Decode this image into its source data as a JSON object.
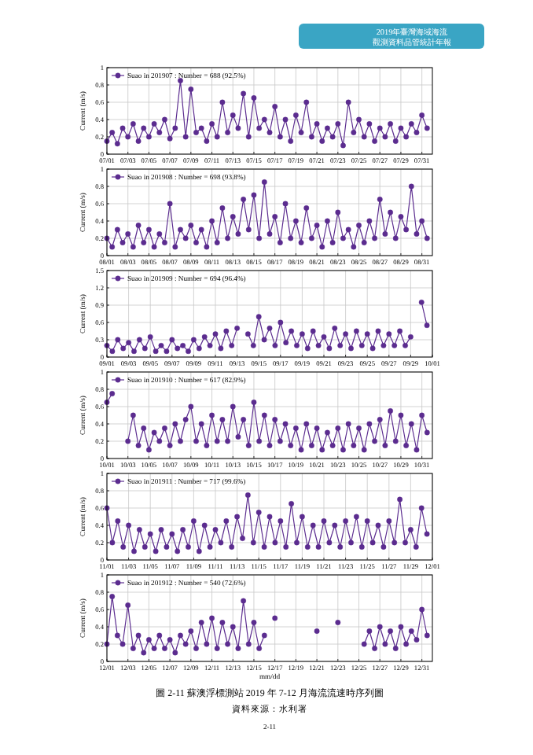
{
  "chart_data": [
    {
      "type": "line",
      "ylabel": "Current (m/s)",
      "annotations": [
        "2019年臺灣海域海流",
        "觀測資料品管統計年報"
      ],
      "grid": true,
      "legend": "top left",
      "marker": "circle",
      "xlim": [
        "2019-07-01",
        "2019-08-01"
      ],
      "ylim": [
        0,
        1
      ],
      "yticks": [
        0,
        0.2,
        0.4,
        0.6,
        0.8,
        1
      ],
      "xticks": [
        {
          "value": "2019-07-01",
          "label": "07/01"
        },
        {
          "value": "2019-07-03",
          "label": "07/03"
        },
        {
          "value": "2019-07-05",
          "label": "07/05"
        },
        {
          "value": "2019-07-07",
          "label": "07/07"
        },
        {
          "value": "2019-07-09",
          "label": "07/09"
        },
        {
          "value": "2019-07-11",
          "label": "07/11"
        },
        {
          "value": "2019-07-13",
          "label": "07/13"
        },
        {
          "value": "2019-07-15",
          "label": "07/15"
        },
        {
          "value": "2019-07-17",
          "label": "07/17"
        },
        {
          "value": "2019-07-19",
          "label": "07/19"
        },
        {
          "value": "2019-07-21",
          "label": "07/21"
        },
        {
          "value": "2019-07-23",
          "label": "07/23"
        },
        {
          "value": "2019-07-25",
          "label": "07/25"
        },
        {
          "value": "2019-07-27",
          "label": "07/27"
        },
        {
          "value": "2019-07-29",
          "label": "07/29"
        },
        {
          "value": "2019-07-31",
          "label": "07/31"
        }
      ],
      "x": [
        "2019-07-01T00:00",
        "2019-07-01T12:00",
        "2019-07-02T00:00",
        "2019-07-02T12:00",
        "2019-07-03T00:00",
        "2019-07-03T12:00",
        "2019-07-04T00:00",
        "2019-07-04T12:00",
        "2019-07-05T00:00",
        "2019-07-05T12:00",
        "2019-07-06T00:00",
        "2019-07-06T12:00",
        "2019-07-07T00:00",
        "2019-07-07T12:00",
        "2019-07-08T00:00",
        "2019-07-08T12:00",
        "2019-07-09T00:00",
        "2019-07-09T12:00",
        "2019-07-10T00:00",
        "2019-07-10T12:00",
        "2019-07-11T00:00",
        "2019-07-11T12:00",
        "2019-07-12T00:00",
        "2019-07-12T12:00",
        "2019-07-13T00:00",
        "2019-07-13T12:00",
        "2019-07-14T00:00",
        "2019-07-14T12:00",
        "2019-07-15T00:00",
        "2019-07-15T12:00",
        "2019-07-16T00:00",
        "2019-07-16T12:00",
        "2019-07-17T00:00",
        "2019-07-17T12:00",
        "2019-07-18T00:00",
        "2019-07-18T12:00",
        "2019-07-19T00:00",
        "2019-07-19T12:00",
        "2019-07-20T00:00",
        "2019-07-20T12:00",
        "2019-07-21T00:00",
        "2019-07-21T12:00",
        "2019-07-22T00:00",
        "2019-07-22T12:00",
        "2019-07-23T00:00",
        "2019-07-23T12:00",
        "2019-07-24T00:00",
        "2019-07-24T12:00",
        "2019-07-25T00:00",
        "2019-07-25T12:00",
        "2019-07-26T00:00",
        "2019-07-26T12:00",
        "2019-07-27T00:00",
        "2019-07-27T12:00",
        "2019-07-28T00:00",
        "2019-07-28T12:00",
        "2019-07-29T00:00",
        "2019-07-29T12:00",
        "2019-07-30T00:00",
        "2019-07-30T12:00",
        "2019-07-31T00:00",
        "2019-07-31T12:00"
      ],
      "series": [
        {
          "name": "Suao in 201907 : Number = 688 (92.5%)",
          "color": "#5b2c8f",
          "values": [
            0.15,
            0.25,
            0.12,
            0.3,
            0.2,
            0.35,
            0.15,
            0.3,
            0.2,
            0.35,
            0.25,
            0.4,
            0.18,
            0.3,
            0.85,
            0.2,
            0.75,
            0.25,
            0.3,
            0.15,
            0.35,
            0.2,
            0.6,
            0.25,
            0.45,
            0.3,
            0.7,
            0.2,
            0.65,
            0.3,
            0.4,
            0.25,
            0.55,
            0.2,
            0.4,
            0.15,
            0.45,
            0.25,
            0.6,
            0.2,
            0.35,
            0.15,
            0.3,
            0.2,
            0.35,
            0.1,
            0.6,
            0.25,
            0.4,
            0.2,
            0.35,
            0.15,
            0.3,
            0.2,
            0.35,
            0.15,
            0.3,
            0.2,
            0.35,
            0.25,
            0.45,
            0.3
          ]
        }
      ]
    },
    {
      "type": "line",
      "ylabel": "Current (m/s)",
      "grid": true,
      "legend": "top left",
      "marker": "circle",
      "xlim": [
        "2019-08-01",
        "2019-09-01"
      ],
      "ylim": [
        0,
        1
      ],
      "yticks": [
        0,
        0.2,
        0.4,
        0.6,
        0.8,
        1
      ],
      "xticks": [
        {
          "value": "2019-08-01",
          "label": "08/01"
        },
        {
          "value": "2019-08-03",
          "label": "08/03"
        },
        {
          "value": "2019-08-05",
          "label": "08/05"
        },
        {
          "value": "2019-08-07",
          "label": "08/07"
        },
        {
          "value": "2019-08-09",
          "label": "08/09"
        },
        {
          "value": "2019-08-11",
          "label": "08/11"
        },
        {
          "value": "2019-08-13",
          "label": "08/13"
        },
        {
          "value": "2019-08-15",
          "label": "08/15"
        },
        {
          "value": "2019-08-17",
          "label": "08/17"
        },
        {
          "value": "2019-08-19",
          "label": "08/19"
        },
        {
          "value": "2019-08-21",
          "label": "08/21"
        },
        {
          "value": "2019-08-23",
          "label": "08/23"
        },
        {
          "value": "2019-08-25",
          "label": "08/25"
        },
        {
          "value": "2019-08-27",
          "label": "08/27"
        },
        {
          "value": "2019-08-29",
          "label": "08/29"
        },
        {
          "value": "2019-08-31",
          "label": "08/31"
        }
      ],
      "x": [
        "2019-08-01T00:00",
        "2019-08-01T12:00",
        "2019-08-02T00:00",
        "2019-08-02T12:00",
        "2019-08-03T00:00",
        "2019-08-03T12:00",
        "2019-08-04T00:00",
        "2019-08-04T12:00",
        "2019-08-05T00:00",
        "2019-08-05T12:00",
        "2019-08-06T00:00",
        "2019-08-06T12:00",
        "2019-08-07T00:00",
        "2019-08-07T12:00",
        "2019-08-08T00:00",
        "2019-08-08T12:00",
        "2019-08-09T00:00",
        "2019-08-09T12:00",
        "2019-08-10T00:00",
        "2019-08-10T12:00",
        "2019-08-11T00:00",
        "2019-08-11T12:00",
        "2019-08-12T00:00",
        "2019-08-12T12:00",
        "2019-08-13T00:00",
        "2019-08-13T12:00",
        "2019-08-14T00:00",
        "2019-08-14T12:00",
        "2019-08-15T00:00",
        "2019-08-15T12:00",
        "2019-08-16T00:00",
        "2019-08-16T12:00",
        "2019-08-17T00:00",
        "2019-08-17T12:00",
        "2019-08-18T00:00",
        "2019-08-18T12:00",
        "2019-08-19T00:00",
        "2019-08-19T12:00",
        "2019-08-20T00:00",
        "2019-08-20T12:00",
        "2019-08-21T00:00",
        "2019-08-21T12:00",
        "2019-08-22T00:00",
        "2019-08-22T12:00",
        "2019-08-23T00:00",
        "2019-08-23T12:00",
        "2019-08-24T00:00",
        "2019-08-24T12:00",
        "2019-08-25T00:00",
        "2019-08-25T12:00",
        "2019-08-26T00:00",
        "2019-08-26T12:00",
        "2019-08-27T00:00",
        "2019-08-27T12:00",
        "2019-08-28T00:00",
        "2019-08-28T12:00",
        "2019-08-29T00:00",
        "2019-08-29T12:00",
        "2019-08-30T00:00",
        "2019-08-30T12:00",
        "2019-08-31T00:00",
        "2019-08-31T12:00"
      ],
      "series": [
        {
          "name": "Suao in 201908 : Number = 698 (93.8%)",
          "color": "#5b2c8f",
          "values": [
            0.2,
            0.1,
            0.3,
            0.15,
            0.25,
            0.1,
            0.35,
            0.15,
            0.3,
            0.1,
            0.25,
            0.15,
            0.6,
            0.1,
            0.3,
            0.2,
            0.35,
            0.15,
            0.3,
            0.1,
            0.4,
            0.15,
            0.55,
            0.2,
            0.45,
            0.25,
            0.65,
            0.3,
            0.7,
            0.2,
            0.85,
            0.25,
            0.45,
            0.15,
            0.6,
            0.2,
            0.4,
            0.15,
            0.55,
            0.2,
            0.35,
            0.1,
            0.4,
            0.15,
            0.5,
            0.2,
            0.3,
            0.1,
            0.35,
            0.15,
            0.4,
            0.2,
            0.65,
            0.25,
            0.5,
            0.2,
            0.45,
            0.3,
            0.8,
            0.25,
            0.4,
            0.2
          ]
        }
      ]
    },
    {
      "type": "line",
      "ylabel": "Current (m/s)",
      "grid": true,
      "legend": "top left",
      "marker": "circle",
      "xlim": [
        "2019-09-01",
        "2019-10-01"
      ],
      "ylim": [
        0,
        1.5
      ],
      "yticks": [
        0,
        0.3,
        0.6,
        0.9,
        1.2,
        1.5
      ],
      "xticks": [
        {
          "value": "2019-09-01",
          "label": "09/01"
        },
        {
          "value": "2019-09-03",
          "label": "09/03"
        },
        {
          "value": "2019-09-05",
          "label": "09/05"
        },
        {
          "value": "2019-09-07",
          "label": "09/07"
        },
        {
          "value": "2019-09-09",
          "label": "09/09"
        },
        {
          "value": "2019-09-11",
          "label": "09/11"
        },
        {
          "value": "2019-09-13",
          "label": "09/13"
        },
        {
          "value": "2019-09-15",
          "label": "09/15"
        },
        {
          "value": "2019-09-17",
          "label": "09/17"
        },
        {
          "value": "2019-09-19",
          "label": "09/19"
        },
        {
          "value": "2019-09-21",
          "label": "09/21"
        },
        {
          "value": "2019-09-23",
          "label": "09/23"
        },
        {
          "value": "2019-09-25",
          "label": "09/25"
        },
        {
          "value": "2019-09-27",
          "label": "09/27"
        },
        {
          "value": "2019-09-29",
          "label": "09/29"
        },
        {
          "value": "2019-10-01",
          "label": "10/01"
        }
      ],
      "x": [
        "2019-09-01T00:00",
        "2019-09-01T12:00",
        "2019-09-02T00:00",
        "2019-09-02T12:00",
        "2019-09-03T00:00",
        "2019-09-03T12:00",
        "2019-09-04T00:00",
        "2019-09-04T12:00",
        "2019-09-05T00:00",
        "2019-09-05T12:00",
        "2019-09-06T00:00",
        "2019-09-06T12:00",
        "2019-09-07T00:00",
        "2019-09-07T12:00",
        "2019-09-08T00:00",
        "2019-09-08T12:00",
        "2019-09-09T00:00",
        "2019-09-09T12:00",
        "2019-09-10T00:00",
        "2019-09-10T12:00",
        "2019-09-11T00:00",
        "2019-09-11T12:00",
        "2019-09-12T00:00",
        "2019-09-12T12:00",
        "2019-09-13T00:00",
        null,
        "2019-09-14T00:00",
        "2019-09-14T12:00",
        "2019-09-15T00:00",
        "2019-09-15T12:00",
        "2019-09-16T00:00",
        "2019-09-16T12:00",
        "2019-09-17T00:00",
        "2019-09-17T12:00",
        "2019-09-18T00:00",
        "2019-09-18T12:00",
        "2019-09-19T00:00",
        "2019-09-19T12:00",
        "2019-09-20T00:00",
        "2019-09-20T12:00",
        "2019-09-21T00:00",
        "2019-09-21T12:00",
        "2019-09-22T00:00",
        "2019-09-22T12:00",
        "2019-09-23T00:00",
        "2019-09-23T12:00",
        "2019-09-24T00:00",
        "2019-09-24T12:00",
        "2019-09-25T00:00",
        "2019-09-25T12:00",
        "2019-09-26T00:00",
        "2019-09-26T12:00",
        "2019-09-27T00:00",
        "2019-09-27T12:00",
        "2019-09-28T00:00",
        "2019-09-28T12:00",
        "2019-09-29T00:00",
        null,
        "2019-09-30T00:00",
        "2019-09-30T12:00"
      ],
      "series": [
        {
          "name": "Suao in 201909 : Number = 694 (96.4%)",
          "color": "#5b2c8f",
          "values": [
            0.2,
            0.1,
            0.3,
            0.15,
            0.25,
            0.1,
            0.3,
            0.15,
            0.35,
            0.1,
            0.2,
            0.1,
            0.3,
            0.15,
            0.2,
            0.1,
            0.3,
            0.15,
            0.35,
            0.2,
            0.4,
            0.15,
            0.45,
            0.2,
            0.5,
            null,
            0.4,
            0.2,
            0.7,
            0.3,
            0.5,
            0.2,
            0.6,
            0.25,
            0.45,
            0.2,
            0.4,
            0.15,
            0.45,
            0.2,
            0.35,
            0.15,
            0.5,
            0.2,
            0.4,
            0.15,
            0.45,
            0.2,
            0.4,
            0.15,
            0.45,
            0.2,
            0.4,
            0.2,
            0.45,
            0.2,
            0.35,
            null,
            0.95,
            0.55
          ]
        }
      ]
    },
    {
      "type": "line",
      "ylabel": "Current (m/s)",
      "grid": true,
      "legend": "top left",
      "marker": "circle",
      "xlim": [
        "2019-10-01",
        "2019-11-01"
      ],
      "ylim": [
        0,
        1
      ],
      "yticks": [
        0,
        0.2,
        0.4,
        0.6,
        0.8,
        1
      ],
      "xticks": [
        {
          "value": "2019-10-01",
          "label": "10/01"
        },
        {
          "value": "2019-10-03",
          "label": "10/03"
        },
        {
          "value": "2019-10-05",
          "label": "10/05"
        },
        {
          "value": "2019-10-07",
          "label": "10/07"
        },
        {
          "value": "2019-10-09",
          "label": "10/09"
        },
        {
          "value": "2019-10-11",
          "label": "10/11"
        },
        {
          "value": "2019-10-13",
          "label": "10/13"
        },
        {
          "value": "2019-10-15",
          "label": "10/15"
        },
        {
          "value": "2019-10-17",
          "label": "10/17"
        },
        {
          "value": "2019-10-19",
          "label": "10/19"
        },
        {
          "value": "2019-10-21",
          "label": "10/21"
        },
        {
          "value": "2019-10-23",
          "label": "10/23"
        },
        {
          "value": "2019-10-25",
          "label": "10/25"
        },
        {
          "value": "2019-10-27",
          "label": "10/27"
        },
        {
          "value": "2019-10-29",
          "label": "10/29"
        },
        {
          "value": "2019-10-31",
          "label": "10/31"
        }
      ],
      "x": [
        "2019-10-01T00:00",
        "2019-10-01T12:00",
        null,
        null,
        "2019-10-03T00:00",
        "2019-10-03T12:00",
        "2019-10-04T00:00",
        "2019-10-04T12:00",
        "2019-10-05T00:00",
        "2019-10-05T12:00",
        "2019-10-06T00:00",
        "2019-10-06T12:00",
        "2019-10-07T00:00",
        "2019-10-07T12:00",
        "2019-10-08T00:00",
        "2019-10-08T12:00",
        "2019-10-09T00:00",
        "2019-10-09T12:00",
        "2019-10-10T00:00",
        "2019-10-10T12:00",
        "2019-10-11T00:00",
        "2019-10-11T12:00",
        "2019-10-12T00:00",
        "2019-10-12T12:00",
        "2019-10-13T00:00",
        "2019-10-13T12:00",
        "2019-10-14T00:00",
        "2019-10-14T12:00",
        "2019-10-15T00:00",
        "2019-10-15T12:00",
        "2019-10-16T00:00",
        "2019-10-16T12:00",
        "2019-10-17T00:00",
        "2019-10-17T12:00",
        "2019-10-18T00:00",
        "2019-10-18T12:00",
        "2019-10-19T00:00",
        "2019-10-19T12:00",
        "2019-10-20T00:00",
        "2019-10-20T12:00",
        "2019-10-21T00:00",
        "2019-10-21T12:00",
        "2019-10-22T00:00",
        "2019-10-22T12:00",
        "2019-10-23T00:00",
        "2019-10-23T12:00",
        "2019-10-24T00:00",
        "2019-10-24T12:00",
        "2019-10-25T00:00",
        "2019-10-25T12:00",
        "2019-10-26T00:00",
        "2019-10-26T12:00",
        "2019-10-27T00:00",
        "2019-10-27T12:00",
        "2019-10-28T00:00",
        "2019-10-28T12:00",
        "2019-10-29T00:00",
        "2019-10-29T12:00",
        "2019-10-30T00:00",
        "2019-10-30T12:00",
        "2019-10-31T00:00",
        "2019-10-31T12:00"
      ],
      "series": [
        {
          "name": "Suao in 201910 : Number = 617 (82.9%)",
          "color": "#5b2c8f",
          "values": [
            0.65,
            0.75,
            null,
            null,
            0.2,
            0.5,
            0.15,
            0.35,
            0.1,
            0.3,
            0.2,
            0.35,
            0.15,
            0.4,
            0.2,
            0.45,
            0.6,
            0.2,
            0.4,
            0.15,
            0.5,
            0.2,
            0.45,
            0.2,
            0.6,
            0.25,
            0.45,
            0.15,
            0.65,
            0.2,
            0.5,
            0.15,
            0.45,
            0.2,
            0.4,
            0.15,
            0.35,
            0.1,
            0.4,
            0.15,
            0.35,
            0.1,
            0.3,
            0.15,
            0.35,
            0.1,
            0.4,
            0.15,
            0.35,
            0.1,
            0.4,
            0.2,
            0.45,
            0.15,
            0.55,
            0.2,
            0.5,
            0.15,
            0.4,
            0.1,
            0.5,
            0.3
          ]
        }
      ]
    },
    {
      "type": "line",
      "ylabel": "Current (m/s)",
      "grid": true,
      "legend": "top left",
      "marker": "circle",
      "xlim": [
        "2019-11-01",
        "2019-12-01"
      ],
      "ylim": [
        0,
        1
      ],
      "yticks": [
        0,
        0.2,
        0.4,
        0.6,
        0.8,
        1
      ],
      "xticks": [
        {
          "value": "2019-11-01",
          "label": "11/01"
        },
        {
          "value": "2019-11-03",
          "label": "11/03"
        },
        {
          "value": "2019-11-05",
          "label": "11/05"
        },
        {
          "value": "2019-11-07",
          "label": "11/07"
        },
        {
          "value": "2019-11-09",
          "label": "11/09"
        },
        {
          "value": "2019-11-11",
          "label": "11/11"
        },
        {
          "value": "2019-11-13",
          "label": "11/13"
        },
        {
          "value": "2019-11-15",
          "label": "11/15"
        },
        {
          "value": "2019-11-17",
          "label": "11/17"
        },
        {
          "value": "2019-11-19",
          "label": "11/19"
        },
        {
          "value": "2019-11-21",
          "label": "11/21"
        },
        {
          "value": "2019-11-23",
          "label": "11/23"
        },
        {
          "value": "2019-11-25",
          "label": "11/25"
        },
        {
          "value": "2019-11-27",
          "label": "11/27"
        },
        {
          "value": "2019-11-29",
          "label": "11/29"
        },
        {
          "value": "2019-12-01",
          "label": "12/01"
        }
      ],
      "x": [
        "2019-11-01T00:00",
        "2019-11-01T12:00",
        "2019-11-02T00:00",
        "2019-11-02T12:00",
        "2019-11-03T00:00",
        "2019-11-03T12:00",
        "2019-11-04T00:00",
        "2019-11-04T12:00",
        "2019-11-05T00:00",
        "2019-11-05T12:00",
        "2019-11-06T00:00",
        "2019-11-06T12:00",
        "2019-11-07T00:00",
        "2019-11-07T12:00",
        "2019-11-08T00:00",
        "2019-11-08T12:00",
        "2019-11-09T00:00",
        "2019-11-09T12:00",
        "2019-11-10T00:00",
        "2019-11-10T12:00",
        "2019-11-11T00:00",
        "2019-11-11T12:00",
        "2019-11-12T00:00",
        "2019-11-12T12:00",
        "2019-11-13T00:00",
        "2019-11-13T12:00",
        "2019-11-14T00:00",
        "2019-11-14T12:00",
        "2019-11-15T00:00",
        "2019-11-15T12:00",
        "2019-11-16T00:00",
        "2019-11-16T12:00",
        "2019-11-17T00:00",
        "2019-11-17T12:00",
        "2019-11-18T00:00",
        "2019-11-18T12:00",
        "2019-11-19T00:00",
        "2019-11-19T12:00",
        "2019-11-20T00:00",
        "2019-11-20T12:00",
        "2019-11-21T00:00",
        "2019-11-21T12:00",
        "2019-11-22T00:00",
        "2019-11-22T12:00",
        "2019-11-23T00:00",
        "2019-11-23T12:00",
        "2019-11-24T00:00",
        "2019-11-24T12:00",
        "2019-11-25T00:00",
        "2019-11-25T12:00",
        "2019-11-26T00:00",
        "2019-11-26T12:00",
        "2019-11-27T00:00",
        "2019-11-27T12:00",
        "2019-11-28T00:00",
        "2019-11-28T12:00",
        "2019-11-29T00:00",
        "2019-11-29T12:00",
        "2019-11-30T00:00",
        "2019-11-30T12:00"
      ],
      "series": [
        {
          "name": "Suao in 201911 : Number = 717 (99.6%)",
          "color": "#5b2c8f",
          "values": [
            0.6,
            0.2,
            0.45,
            0.15,
            0.4,
            0.1,
            0.35,
            0.15,
            0.3,
            0.1,
            0.35,
            0.15,
            0.3,
            0.1,
            0.35,
            0.15,
            0.45,
            0.1,
            0.4,
            0.15,
            0.35,
            0.2,
            0.45,
            0.15,
            0.5,
            0.25,
            0.75,
            0.2,
            0.55,
            0.15,
            0.5,
            0.2,
            0.45,
            0.15,
            0.65,
            0.2,
            0.5,
            0.15,
            0.4,
            0.15,
            0.45,
            0.2,
            0.4,
            0.15,
            0.45,
            0.2,
            0.5,
            0.15,
            0.45,
            0.2,
            0.4,
            0.15,
            0.45,
            0.2,
            0.7,
            0.2,
            0.35,
            0.15,
            0.6,
            0.3
          ]
        }
      ]
    },
    {
      "type": "line",
      "ylabel": "Current (m/s)",
      "xlabel": "mm/dd",
      "annotations": [
        "圖 2-11 蘇澳浮標測站 2019 年 7-12 月海流流速時序列圖",
        "資料來源：水利署",
        "2-11"
      ],
      "grid": true,
      "legend": "top left",
      "marker": "circle",
      "xlim": [
        "2019-12-01",
        "2020-01-01"
      ],
      "ylim": [
        0,
        1
      ],
      "yticks": [
        0,
        0.2,
        0.4,
        0.6,
        0.8,
        1
      ],
      "xticks": [
        {
          "value": "2019-12-01",
          "label": "12/01"
        },
        {
          "value": "2019-12-03",
          "label": "12/03"
        },
        {
          "value": "2019-12-05",
          "label": "12/05"
        },
        {
          "value": "2019-12-07",
          "label": "12/07"
        },
        {
          "value": "2019-12-09",
          "label": "12/09"
        },
        {
          "value": "2019-12-11",
          "label": "12/11"
        },
        {
          "value": "2019-12-13",
          "label": "12/13"
        },
        {
          "value": "2019-12-15",
          "label": "12/15"
        },
        {
          "value": "2019-12-17",
          "label": "12/17"
        },
        {
          "value": "2019-12-19",
          "label": "12/19"
        },
        {
          "value": "2019-12-21",
          "label": "12/21"
        },
        {
          "value": "2019-12-23",
          "label": "12/23"
        },
        {
          "value": "2019-12-25",
          "label": "12/25"
        },
        {
          "value": "2019-12-27",
          "label": "12/27"
        },
        {
          "value": "2019-12-29",
          "label": "12/29"
        },
        {
          "value": "2019-12-31",
          "label": "12/31"
        }
      ],
      "x": [
        "2019-12-01T00:00",
        "2019-12-01T12:00",
        "2019-12-02T00:00",
        "2019-12-02T12:00",
        "2019-12-03T00:00",
        "2019-12-03T12:00",
        "2019-12-04T00:00",
        "2019-12-04T12:00",
        "2019-12-05T00:00",
        "2019-12-05T12:00",
        "2019-12-06T00:00",
        "2019-12-06T12:00",
        "2019-12-07T00:00",
        "2019-12-07T12:00",
        "2019-12-08T00:00",
        "2019-12-08T12:00",
        "2019-12-09T00:00",
        "2019-12-09T12:00",
        "2019-12-10T00:00",
        "2019-12-10T12:00",
        "2019-12-11T00:00",
        "2019-12-11T12:00",
        "2019-12-12T00:00",
        "2019-12-12T12:00",
        "2019-12-13T00:00",
        "2019-12-13T12:00",
        "2019-12-14T00:00",
        "2019-12-14T12:00",
        "2019-12-15T00:00",
        "2019-12-15T12:00",
        "2019-12-16T00:00",
        null,
        "2019-12-17T00:00",
        null,
        null,
        null,
        null,
        null,
        null,
        null,
        "2019-12-21T00:00",
        null,
        null,
        null,
        "2019-12-23T00:00",
        null,
        null,
        null,
        null,
        "2019-12-25T12:00",
        "2019-12-26T00:00",
        "2019-12-26T12:00",
        "2019-12-27T00:00",
        "2019-12-27T12:00",
        "2019-12-28T00:00",
        "2019-12-28T12:00",
        "2019-12-29T00:00",
        "2019-12-29T12:00",
        "2019-12-30T00:00",
        "2019-12-30T12:00",
        "2019-12-31T00:00",
        "2019-12-31T12:00"
      ],
      "series": [
        {
          "name": "Suao in 201912 : Number = 540 (72.6%)",
          "color": "#5b2c8f",
          "values": [
            0.2,
            0.75,
            0.3,
            0.2,
            0.65,
            0.15,
            0.3,
            0.1,
            0.25,
            0.15,
            0.3,
            0.15,
            0.25,
            0.1,
            0.3,
            0.2,
            0.35,
            0.15,
            0.45,
            0.2,
            0.5,
            0.15,
            0.45,
            0.2,
            0.4,
            0.15,
            0.7,
            0.2,
            0.45,
            0.15,
            0.3,
            null,
            0.5,
            null,
            null,
            null,
            null,
            null,
            null,
            null,
            0.35,
            null,
            null,
            null,
            0.45,
            null,
            null,
            null,
            null,
            0.2,
            0.35,
            0.15,
            0.4,
            0.2,
            0.35,
            0.15,
            0.4,
            0.2,
            0.35,
            0.25,
            0.6,
            0.3
          ]
        }
      ]
    }
  ]
}
